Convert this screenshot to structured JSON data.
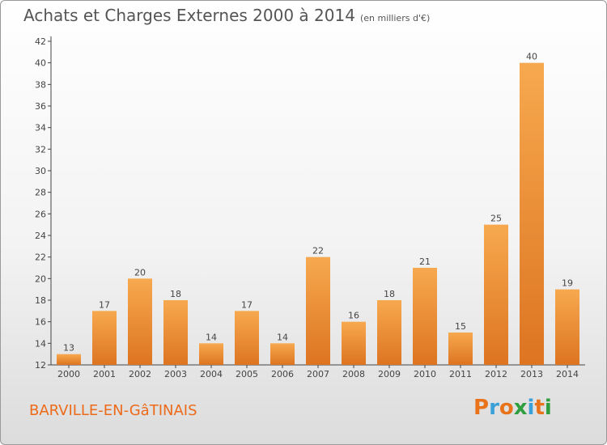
{
  "header": {
    "title": "Achats et Charges Externes 2000 à 2014",
    "subtitle": "(en milliers d'€)"
  },
  "footer": {
    "commune": "BARVILLE-EN-GâTINAIS",
    "logo_text": "Proxiti",
    "logo_letters": [
      "P",
      "r",
      "o",
      "x",
      "i",
      "t",
      "i"
    ],
    "logo_colors": [
      "#e8731a",
      "#3aa0d8",
      "#e8731a",
      "#2e9e3e",
      "#3aa0d8",
      "#e8731a",
      "#2e9e3e"
    ]
  },
  "colors": {
    "bar_light": "#f7a94f",
    "bar_dark": "#dd7422",
    "axis": "#444444",
    "grid": "#d8d8d8"
  },
  "chart_data": {
    "type": "bar",
    "title": "Achats et Charges Externes 2000 à 2014",
    "subtitle": "(en milliers d'€)",
    "categories": [
      "2000",
      "2001",
      "2002",
      "2003",
      "2004",
      "2005",
      "2006",
      "2007",
      "2008",
      "2009",
      "2010",
      "2011",
      "2012",
      "2013",
      "2014"
    ],
    "values": [
      13,
      17,
      20,
      18,
      14,
      17,
      14,
      22,
      16,
      18,
      21,
      15,
      25,
      40,
      19
    ],
    "ylim": [
      12,
      42
    ],
    "yticks": [
      12,
      14,
      16,
      18,
      20,
      22,
      24,
      26,
      28,
      30,
      32,
      34,
      36,
      38,
      40,
      42
    ],
    "grid": false,
    "data_labels": true,
    "xlabel": "",
    "ylabel": ""
  }
}
